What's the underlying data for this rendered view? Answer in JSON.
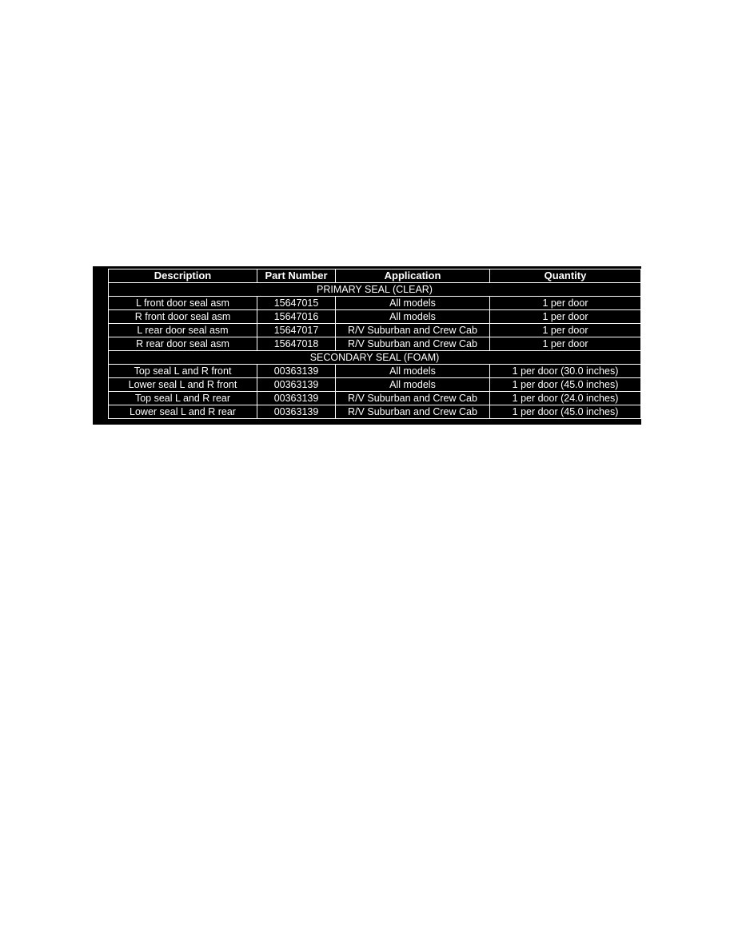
{
  "table": {
    "headers": [
      "Description",
      "Part Number",
      "Application",
      "Quantity"
    ],
    "sections": [
      {
        "title": "PRIMARY SEAL (CLEAR)",
        "rows": [
          [
            "L front door seal asm",
            "15647015",
            "All models",
            "1 per door"
          ],
          [
            "R front door seal asm",
            "15647016",
            "All models",
            "1 per door"
          ],
          [
            "L rear door seal asm",
            "15647017",
            "R/V Suburban and Crew Cab",
            "1 per door"
          ],
          [
            "R rear door seal asm",
            "15647018",
            "R/V Suburban and Crew Cab",
            "1 per door"
          ]
        ]
      },
      {
        "title": "SECONDARY SEAL (FOAM)",
        "rows": [
          [
            "Top seal L and R front",
            "00363139",
            "All models",
            "1 per door (30.0 inches)"
          ],
          [
            "Lower seal L and R front",
            "00363139",
            "All models",
            "1 per door (45.0 inches)"
          ],
          [
            "Top seal L and R rear",
            "00363139",
            "R/V Suburban and Crew Cab",
            "1 per door (24.0 inches)"
          ],
          [
            "Lower seal L and R rear",
            "00363139",
            "R/V Suburban and Crew Cab",
            "1 per door (45.0 inches)"
          ]
        ]
      }
    ]
  }
}
